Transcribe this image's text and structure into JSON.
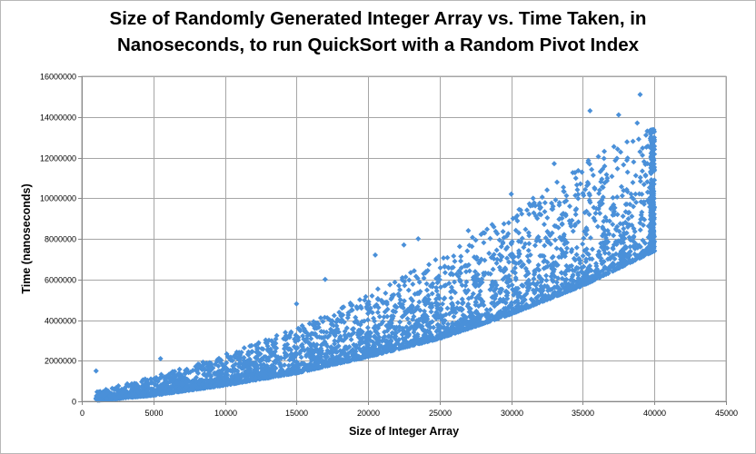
{
  "chart_data": {
    "type": "scatter",
    "title_lines": [
      "Size of Randomly Generated Integer Array vs. Time Taken, in",
      "Nanoseconds, to run QuickSort with a Random Pivot Index"
    ],
    "xlabel": "Size of Integer Array",
    "ylabel": "Time (nanoseconds)",
    "xlim": [
      0,
      45000
    ],
    "ylim": [
      0,
      16000000
    ],
    "x_ticks": [
      0,
      5000,
      10000,
      15000,
      20000,
      25000,
      30000,
      35000,
      40000,
      45000
    ],
    "y_ticks": [
      0,
      2000000,
      4000000,
      6000000,
      8000000,
      10000000,
      12000000,
      14000000,
      16000000
    ],
    "grid": true,
    "legend": "none",
    "marker": "diamond",
    "color": "#4a90d9",
    "series": [
      {
        "x_range": [
          1000,
          40000
        ],
        "lower_envelope": [
          [
            1000,
            50000
          ],
          [
            5000,
            300000
          ],
          [
            10000,
            800000
          ],
          [
            15000,
            1400000
          ],
          [
            20000,
            2200000
          ],
          [
            25000,
            3100000
          ],
          [
            30000,
            4300000
          ],
          [
            35000,
            5700000
          ],
          [
            40000,
            7400000
          ]
        ],
        "upper_envelope": [
          [
            1000,
            500000
          ],
          [
            5000,
            1200000
          ],
          [
            10000,
            2300000
          ],
          [
            15000,
            3600000
          ],
          [
            20000,
            5300000
          ],
          [
            25000,
            7100000
          ],
          [
            30000,
            9300000
          ],
          [
            35000,
            11800000
          ],
          [
            40000,
            13500000
          ]
        ],
        "outliers": [
          [
            1000,
            1500000
          ],
          [
            5500,
            2100000
          ],
          [
            15000,
            4800000
          ],
          [
            17000,
            6000000
          ],
          [
            20500,
            7200000
          ],
          [
            22500,
            7700000
          ],
          [
            23500,
            8000000
          ],
          [
            27000,
            8400000
          ],
          [
            30000,
            10200000
          ],
          [
            32500,
            10400000
          ],
          [
            33000,
            11700000
          ],
          [
            35500,
            14300000
          ],
          [
            36500,
            12300000
          ],
          [
            37500,
            14100000
          ],
          [
            38500,
            12800000
          ],
          [
            38800,
            13700000
          ],
          [
            39000,
            15100000
          ],
          [
            39500,
            13300000
          ],
          [
            39800,
            12600000
          ],
          [
            40000,
            12400000
          ]
        ]
      }
    ]
  }
}
